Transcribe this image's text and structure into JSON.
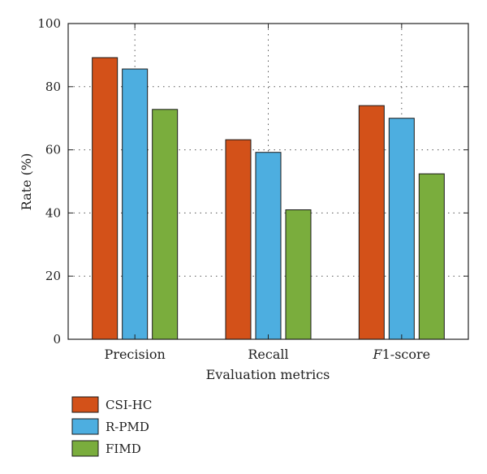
{
  "chart_data": {
    "type": "bar",
    "title": "",
    "xlabel": "Evaluation metrics",
    "ylabel": "Rate (%)",
    "ylim": [
      0,
      100
    ],
    "yticks": [
      0,
      20,
      40,
      60,
      80,
      100
    ],
    "grid": "dotted, major",
    "legend_position": "bottom-left, below plot",
    "categories": [
      "Precision",
      "Recall",
      "F1-score"
    ],
    "category_parts": [
      {
        "italic": "",
        "plain": "Precision"
      },
      {
        "italic": "",
        "plain": "Recall"
      },
      {
        "italic": "F",
        "plain": "1-score"
      }
    ],
    "series": [
      {
        "name": "CSI-HC",
        "color": "#d35119",
        "values": [
          89.2,
          63.2,
          74.0
        ]
      },
      {
        "name": "R-PMD",
        "color": "#4daee0",
        "values": [
          85.6,
          59.2,
          70.0
        ]
      },
      {
        "name": "FIMD",
        "color": "#7aad3d",
        "values": [
          72.8,
          41.0,
          52.4
        ]
      }
    ]
  }
}
